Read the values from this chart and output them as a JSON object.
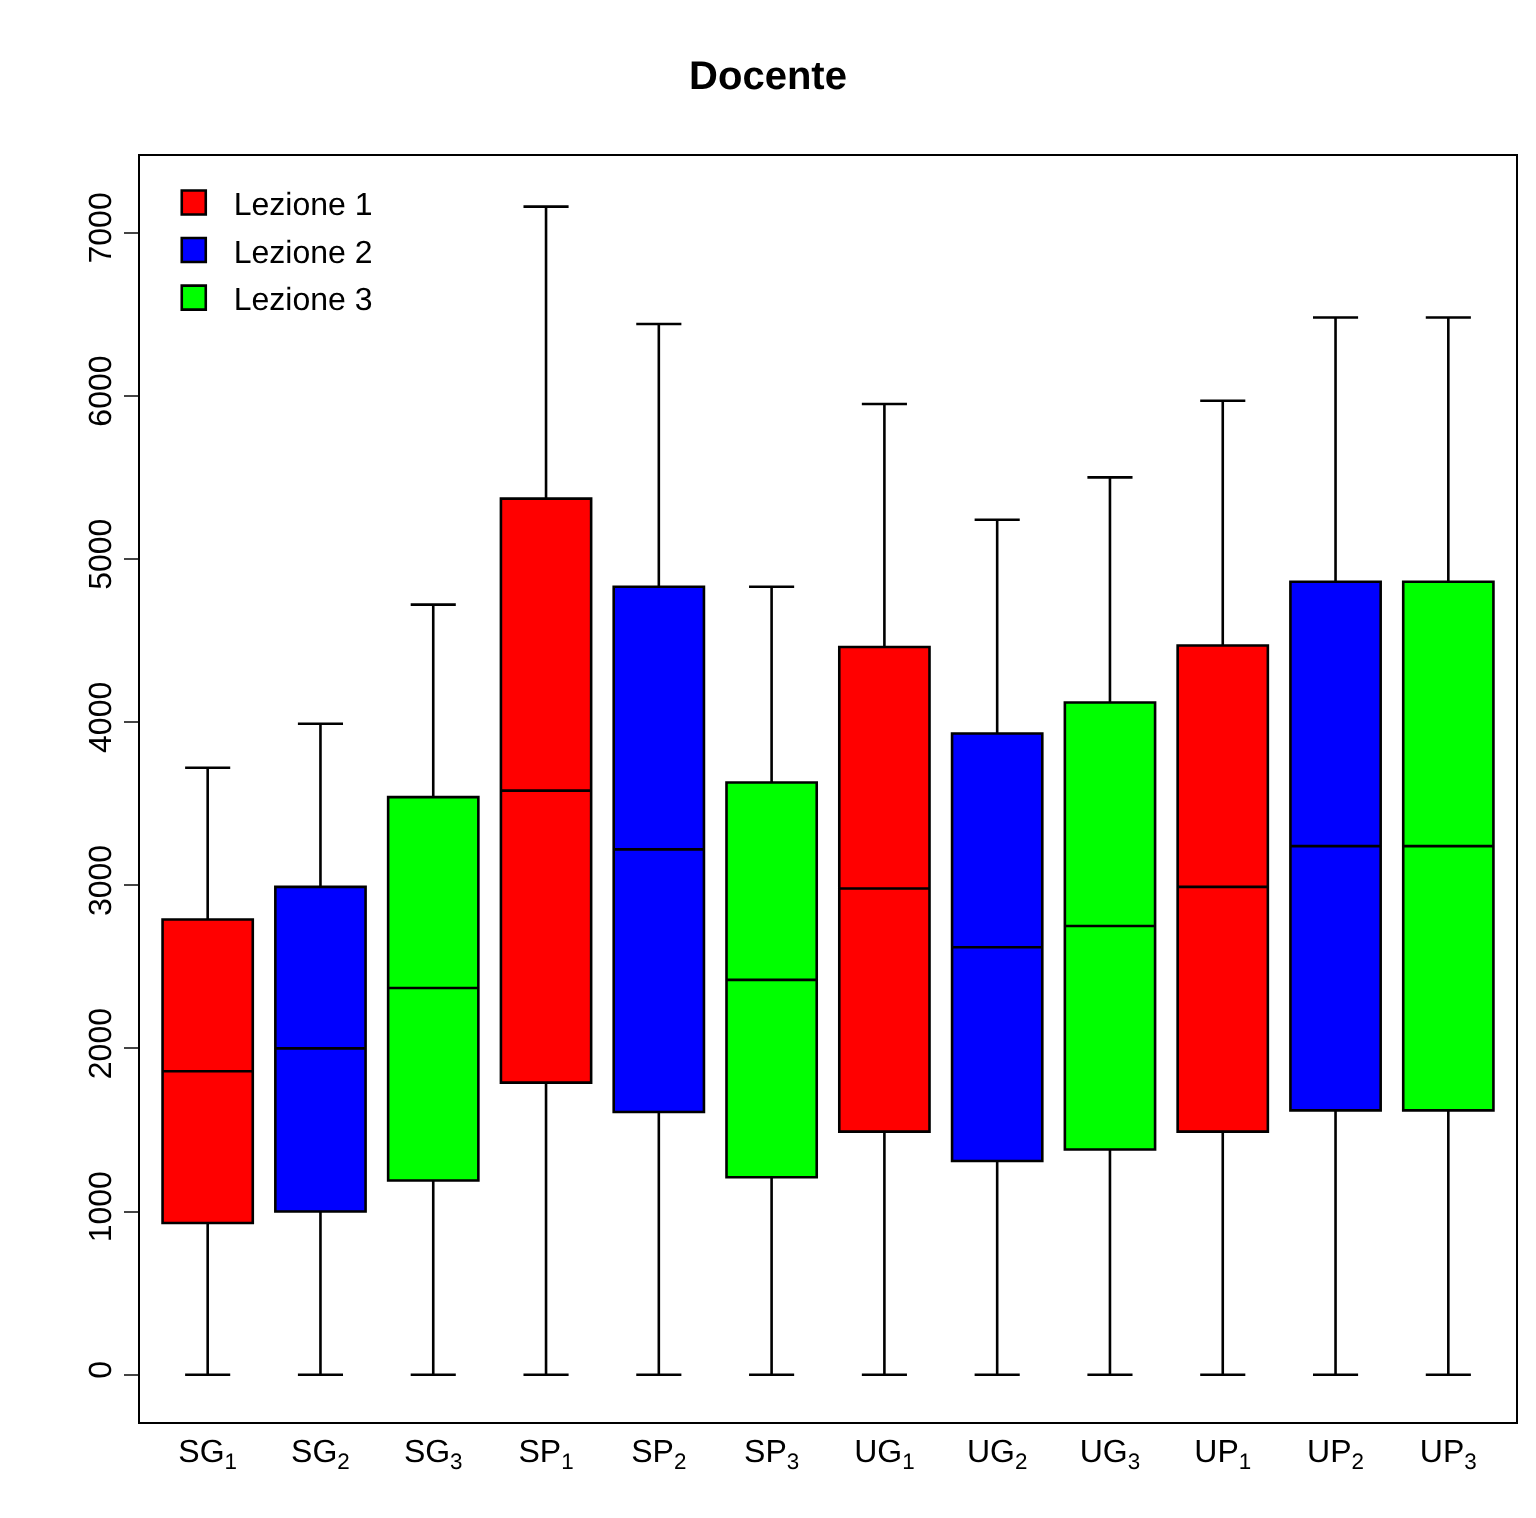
{
  "chart_data": {
    "type": "box",
    "title": "Docente",
    "categories": [
      "SG$_{1}$",
      "SG$_{2}$",
      "SG$_{3}$",
      "SP$_{1}$",
      "SP$_{2}$",
      "SP$_{3}$",
      "UG$_{1}$",
      "UG$_{2}$",
      "UG$_{3}$",
      "UP$_{1}$",
      "UP$_{2}$",
      "UP$_{3}$"
    ],
    "series": [
      {
        "name": "Lezione 1",
        "color": "#ff0000",
        "boxes": [
          {
            "low": 0,
            "q1": 930,
            "median": 1860,
            "q3": 2790,
            "high": 3720
          },
          null,
          null,
          {
            "low": 0,
            "q1": 1790,
            "median": 3580,
            "q3": 5370,
            "high": 7160
          },
          null,
          null,
          {
            "low": 0,
            "q1": 1490,
            "median": 2980,
            "q3": 4460,
            "high": 5950
          },
          null,
          null,
          {
            "low": 0,
            "q1": 1490,
            "median": 2990,
            "q3": 4470,
            "high": 5970
          },
          null,
          null
        ]
      },
      {
        "name": "Lezione 2",
        "color": "#0000ff",
        "boxes": [
          null,
          {
            "low": 0,
            "q1": 1000,
            "median": 2000,
            "q3": 2990,
            "high": 3990
          },
          null,
          null,
          {
            "low": 0,
            "q1": 1610,
            "median": 3220,
            "q3": 4830,
            "high": 6440
          },
          null,
          null,
          {
            "low": 0,
            "q1": 1310,
            "median": 2620,
            "q3": 3930,
            "high": 5240
          },
          null,
          null,
          {
            "low": 0,
            "q1": 1620,
            "median": 3240,
            "q3": 4860,
            "high": 6480
          },
          null
        ]
      },
      {
        "name": "Lezione 3",
        "color": "#00ff00",
        "boxes": [
          null,
          null,
          {
            "low": 0,
            "q1": 1190,
            "median": 2370,
            "q3": 3540,
            "high": 4720
          },
          null,
          null,
          {
            "low": 0,
            "q1": 1210,
            "median": 2420,
            "q3": 3630,
            "high": 4830
          },
          null,
          null,
          {
            "low": 0,
            "q1": 1380,
            "median": 2750,
            "q3": 4120,
            "high": 5500
          },
          null,
          null,
          {
            "low": 0,
            "q1": 1620,
            "median": 3240,
            "q3": 4860,
            "high": 6480
          }
        ]
      }
    ],
    "ylim": [
      -290,
      7470
    ],
    "yticks": [
      0,
      1000,
      2000,
      3000,
      4000,
      5000,
      6000,
      7000
    ],
    "grid": false,
    "legend": "top left"
  }
}
